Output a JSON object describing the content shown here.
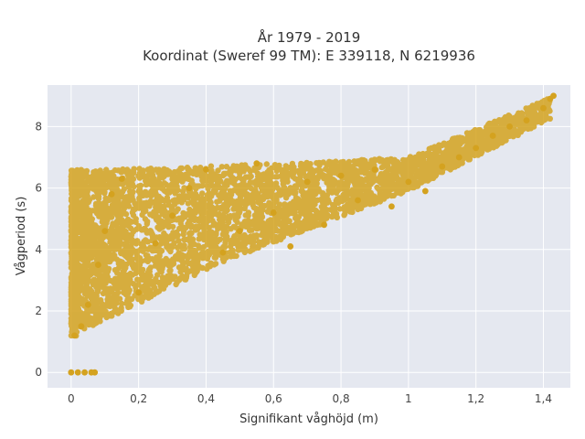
{
  "chart_data": {
    "type": "scatter",
    "title_line1": "År 1979 - 2019",
    "title_line2": "Koordinat (Sweref 99 TM): E 339118, N 6219936",
    "xlabel": "Signifikant våghöjd (m)",
    "ylabel": "Vågperiod (s)",
    "xlim": [
      -0.07,
      1.48
    ],
    "ylim": [
      -0.5,
      9.35
    ],
    "x_ticks": [
      0,
      0.2,
      0.4,
      0.6,
      0.8,
      1.0,
      1.2,
      1.4
    ],
    "x_tick_labels": [
      "0",
      "0,2",
      "0,4",
      "0,6",
      "0,8",
      "1",
      "1,2",
      "1,4"
    ],
    "y_ticks": [
      0,
      2,
      4,
      6,
      8
    ],
    "y_tick_labels": [
      "0",
      "2",
      "4",
      "6",
      "8"
    ],
    "grid": true,
    "colors": {
      "marker": "#D4A21F",
      "plot_bg": "#E5E8F0",
      "grid": "#FFFFFF"
    },
    "series": [
      {
        "points": [
          [
            0,
            0
          ],
          [
            0.02,
            0
          ],
          [
            0.04,
            0
          ],
          [
            0.06,
            0
          ],
          [
            0.07,
            0
          ],
          [
            0.01,
            1.2
          ],
          [
            0.03,
            1.5
          ],
          [
            0.05,
            2.2
          ],
          [
            0.08,
            3.5
          ],
          [
            0.1,
            4.6
          ],
          [
            0.12,
            5.8
          ],
          [
            0.15,
            6.3
          ],
          [
            0.2,
            2.6
          ],
          [
            0.25,
            4.2
          ],
          [
            0.3,
            5.1
          ],
          [
            0.35,
            6.0
          ],
          [
            0.4,
            6.6
          ],
          [
            0.45,
            3.9
          ],
          [
            0.5,
            4.6
          ],
          [
            0.55,
            6.8
          ],
          [
            0.6,
            5.2
          ],
          [
            0.65,
            4.1
          ],
          [
            0.7,
            6.2
          ],
          [
            0.75,
            4.8
          ],
          [
            0.8,
            6.4
          ],
          [
            0.85,
            5.6
          ],
          [
            0.9,
            6.6
          ],
          [
            0.95,
            5.4
          ],
          [
            1.0,
            6.2
          ],
          [
            1.05,
            5.9
          ],
          [
            1.1,
            6.7
          ],
          [
            1.15,
            7.0
          ],
          [
            1.2,
            7.3
          ],
          [
            1.25,
            7.7
          ],
          [
            1.3,
            8.0
          ],
          [
            1.35,
            8.2
          ],
          [
            1.4,
            8.6
          ],
          [
            1.42,
            8.9
          ],
          [
            1.43,
            9.0
          ]
        ]
      }
    ]
  }
}
